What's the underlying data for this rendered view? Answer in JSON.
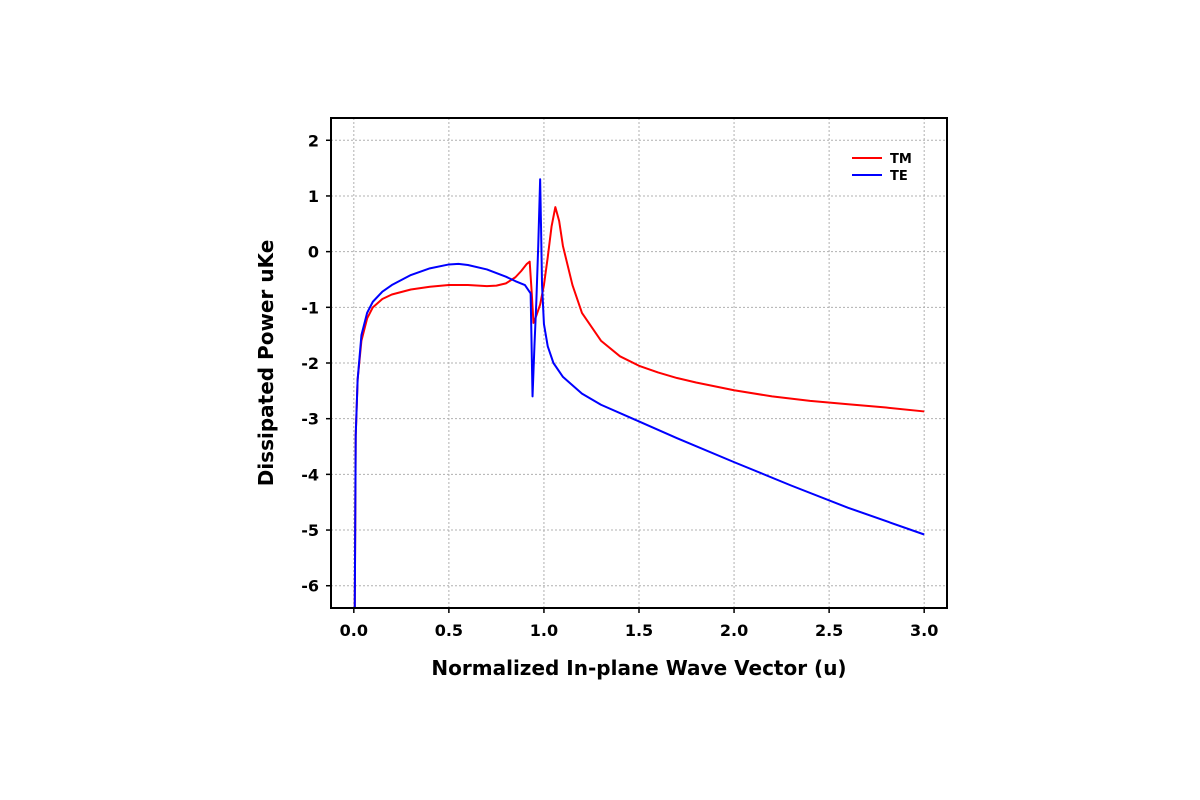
{
  "chart_data": {
    "type": "line",
    "xlabel": "Normalized In-plane Wave Vector (u)",
    "ylabel": "Dissipated Power uKe",
    "xlim": [
      -0.12,
      3.12
    ],
    "ylim": [
      -6.4,
      2.4
    ],
    "xticks": [
      0.0,
      0.5,
      1.0,
      1.5,
      2.0,
      2.5,
      3.0
    ],
    "xtick_labels": [
      "0.0",
      "0.5",
      "1.0",
      "1.5",
      "2.0",
      "2.5",
      "3.0"
    ],
    "yticks": [
      -6,
      -5,
      -4,
      -3,
      -2,
      -1,
      0,
      1,
      2
    ],
    "ytick_labels": [
      "-6",
      "-5",
      "-4",
      "-3",
      "-2",
      "-1",
      "0",
      "1",
      "2"
    ],
    "grid": true,
    "legend_position": "top-right",
    "series": [
      {
        "name": "TM",
        "color": "#ff0000",
        "x": [
          0.005,
          0.01,
          0.02,
          0.04,
          0.07,
          0.1,
          0.15,
          0.2,
          0.3,
          0.4,
          0.5,
          0.6,
          0.7,
          0.75,
          0.8,
          0.85,
          0.88,
          0.91,
          0.925,
          0.935,
          0.945,
          0.96,
          0.98,
          1.0,
          1.02,
          1.04,
          1.06,
          1.08,
          1.1,
          1.15,
          1.2,
          1.3,
          1.4,
          1.5,
          1.6,
          1.7,
          1.8,
          2.0,
          2.2,
          2.4,
          2.6,
          2.8,
          3.0
        ],
        "y": [
          -6.4,
          -3.3,
          -2.3,
          -1.6,
          -1.2,
          -1.0,
          -0.85,
          -0.77,
          -0.68,
          -0.63,
          -0.6,
          -0.6,
          -0.62,
          -0.61,
          -0.57,
          -0.46,
          -0.35,
          -0.22,
          -0.18,
          -0.7,
          -1.28,
          -1.15,
          -0.95,
          -0.6,
          -0.1,
          0.45,
          0.8,
          0.55,
          0.1,
          -0.6,
          -1.1,
          -1.6,
          -1.88,
          -2.05,
          -2.17,
          -2.27,
          -2.35,
          -2.49,
          -2.6,
          -2.68,
          -2.74,
          -2.8,
          -2.87
        ]
      },
      {
        "name": "TE",
        "color": "#0000ff",
        "x": [
          0.005,
          0.01,
          0.02,
          0.04,
          0.07,
          0.1,
          0.15,
          0.2,
          0.3,
          0.4,
          0.5,
          0.55,
          0.6,
          0.7,
          0.8,
          0.85,
          0.9,
          0.93,
          0.94,
          0.95,
          0.96,
          0.97,
          0.98,
          0.985,
          0.99,
          1.0,
          1.02,
          1.05,
          1.1,
          1.2,
          1.3,
          1.5,
          1.7,
          2.0,
          2.3,
          2.6,
          3.0
        ],
        "y": [
          -6.4,
          -3.3,
          -2.3,
          -1.5,
          -1.1,
          -0.9,
          -0.72,
          -0.6,
          -0.42,
          -0.3,
          -0.23,
          -0.22,
          -0.24,
          -0.32,
          -0.45,
          -0.53,
          -0.6,
          -0.75,
          -2.6,
          -1.7,
          -0.9,
          0.1,
          1.3,
          0.4,
          -0.6,
          -1.3,
          -1.7,
          -2.0,
          -2.25,
          -2.55,
          -2.75,
          -3.05,
          -3.35,
          -3.78,
          -4.2,
          -4.6,
          -5.08
        ]
      }
    ]
  }
}
